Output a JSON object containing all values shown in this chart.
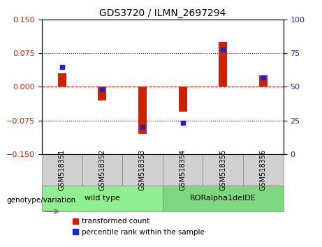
{
  "title": "GDS3720 / ILMN_2697294",
  "categories": [
    "GSM518351",
    "GSM518352",
    "GSM518353",
    "GSM518354",
    "GSM518355",
    "GSM518356"
  ],
  "transformed_count": [
    0.03,
    -0.03,
    -0.105,
    -0.055,
    0.1,
    0.025
  ],
  "percentile_rank": [
    65,
    48,
    20,
    23,
    78,
    57
  ],
  "groups": [
    {
      "label": "wild type",
      "indices": [
        0,
        1,
        2
      ],
      "color": "#90EE90"
    },
    {
      "label": "RORalpha1delDE",
      "indices": [
        3,
        4,
        5
      ],
      "color": "#7FD87F"
    }
  ],
  "group_label_prefix": "genotype/variation",
  "bar_color_red": "#CC2200",
  "bar_color_blue": "#2222CC",
  "ylim_left": [
    -0.15,
    0.15
  ],
  "ylim_right": [
    0,
    100
  ],
  "yticks_left": [
    -0.15,
    -0.075,
    0,
    0.075,
    0.15
  ],
  "yticks_right": [
    0,
    25,
    50,
    75,
    100
  ],
  "hlines": [
    0.075,
    0,
    -0.075
  ],
  "hline_colors": [
    "black",
    "red",
    "black"
  ],
  "hline_styles": [
    "dotted",
    "dashed",
    "dotted"
  ],
  "bar_width": 0.35,
  "legend_items": [
    {
      "label": "transformed count",
      "color": "#CC2200"
    },
    {
      "label": "percentile rank within the sample",
      "color": "#2222CC"
    }
  ],
  "background_color": "#ffffff",
  "plot_bg": "#ffffff",
  "group_box_colors": [
    "#90EE90",
    "#90EE90"
  ],
  "tick_color_left": "#CC2200",
  "tick_color_right": "#2222CC"
}
